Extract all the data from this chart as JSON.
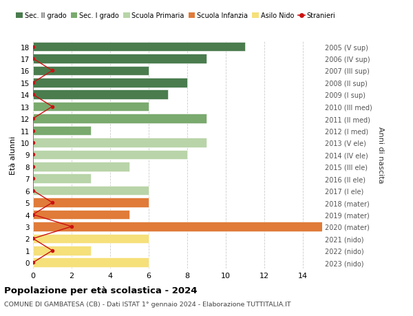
{
  "ages": [
    18,
    17,
    16,
    15,
    14,
    13,
    12,
    11,
    10,
    9,
    8,
    7,
    6,
    5,
    4,
    3,
    2,
    1,
    0
  ],
  "right_labels": [
    "2005 (V sup)",
    "2006 (IV sup)",
    "2007 (III sup)",
    "2008 (II sup)",
    "2009 (I sup)",
    "2010 (III med)",
    "2011 (II med)",
    "2012 (I med)",
    "2013 (V ele)",
    "2014 (IV ele)",
    "2015 (III ele)",
    "2016 (II ele)",
    "2017 (I ele)",
    "2018 (mater)",
    "2019 (mater)",
    "2020 (mater)",
    "2021 (nido)",
    "2022 (nido)",
    "2023 (nido)"
  ],
  "bar_values": [
    11,
    9,
    6,
    8,
    7,
    6,
    9,
    3,
    9,
    8,
    5,
    3,
    6,
    6,
    5,
    15,
    6,
    3,
    6
  ],
  "bar_colors": [
    "#4a7c4e",
    "#4a7c4e",
    "#4a7c4e",
    "#4a7c4e",
    "#4a7c4e",
    "#7aaa6e",
    "#7aaa6e",
    "#7aaa6e",
    "#b8d4a8",
    "#b8d4a8",
    "#b8d4a8",
    "#b8d4a8",
    "#b8d4a8",
    "#e07b39",
    "#e07b39",
    "#e07b39",
    "#f5e07a",
    "#f5e07a",
    "#f5e07a"
  ],
  "stranieri_x": [
    0,
    0,
    1,
    0,
    0,
    1,
    0,
    0,
    0,
    0,
    0,
    0,
    0,
    1,
    0,
    2,
    0,
    1,
    0
  ],
  "legend_labels": [
    "Sec. II grado",
    "Sec. I grado",
    "Scuola Primaria",
    "Scuola Infanzia",
    "Asilo Nido",
    "Stranieri"
  ],
  "legend_colors": [
    "#4a7c4e",
    "#7aaa6e",
    "#b8d4a8",
    "#e07b39",
    "#f5e07a",
    "#cc1111"
  ],
  "title": "Popolazione per età scolastica - 2024",
  "subtitle": "COMUNE DI GAMBATESA (CB) - Dati ISTAT 1° gennaio 2024 - Elaborazione TUTTITALIA.IT",
  "ylabel_left": "Età alunni",
  "ylabel_right": "Anni di nascita",
  "xlim": [
    0,
    15
  ],
  "xticks": [
    0,
    2,
    4,
    6,
    8,
    10,
    12,
    14
  ],
  "background_color": "#ffffff",
  "grid_color": "#cccccc",
  "bar_height": 0.78
}
